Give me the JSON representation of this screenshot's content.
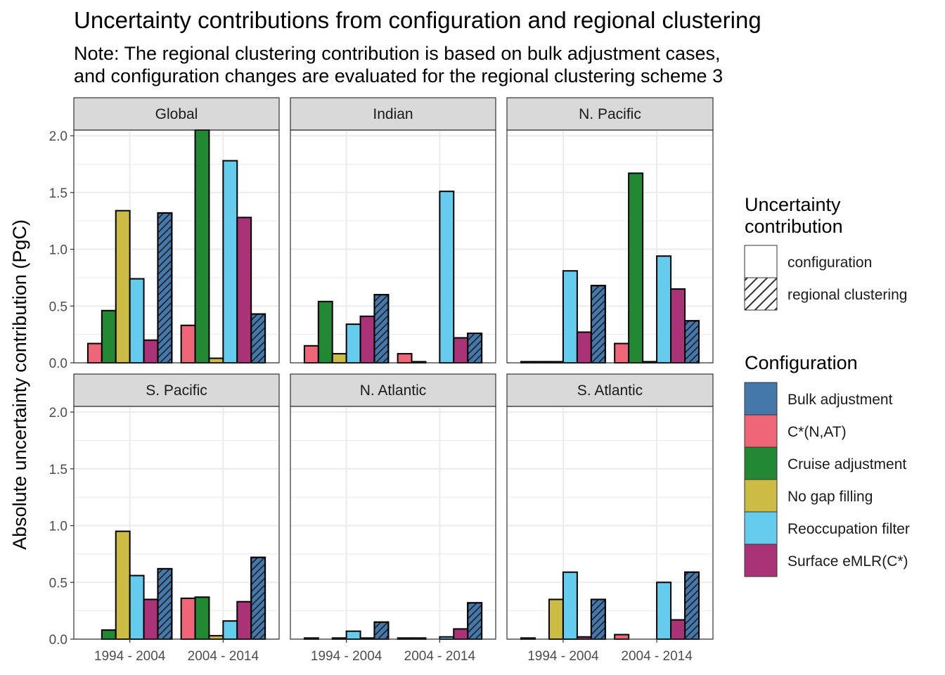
{
  "title": "Uncertainty contributions from configuration and regional clustering",
  "subtitle_lines": [
    "Note: The regional clustering contribution is based on bulk adjustment cases,",
    "and configuration changes are evaluated for the regional clustering scheme 3"
  ],
  "colors": {
    "Bulk adjustment": "#4477aa",
    "C*(N,AT)": "#ee6677",
    "Cruise adjustment": "#228833",
    "No gap filling": "#ccbb44",
    "Reoccupation filter": "#66ccee",
    "Surface eMLR(C*)": "#aa3377"
  },
  "chart_data": {
    "type": "bar",
    "facet_layout": "2 rows x 3 columns",
    "ylabel": "Absolute uncertainty contribution (PgC)",
    "xlabel": "",
    "ylim": [
      0,
      2.05
    ],
    "yticks": [
      0.0,
      0.5,
      1.0,
      1.5,
      2.0
    ],
    "ytick_labels": [
      "0.0",
      "0.5",
      "1.0",
      "1.5",
      "2.0"
    ],
    "grid": true,
    "categories": [
      "1994 - 2004",
      "2004 - 2014"
    ],
    "series_order": [
      "C*(N,AT)",
      "Cruise adjustment",
      "No gap filling",
      "Reoccupation filter",
      "Surface eMLR(C*)",
      "Bulk adjustment"
    ],
    "hatched_series": [
      "Bulk adjustment"
    ],
    "legend": {
      "placement": "right",
      "uncertainty_title_lines": [
        "Uncertainty",
        "contribution"
      ],
      "uncertainty_items": [
        {
          "label": "configuration",
          "hatched": false
        },
        {
          "label": "regional clustering",
          "hatched": true
        }
      ],
      "config_title": "Configuration",
      "config_items": [
        "Bulk adjustment",
        "C*(N,AT)",
        "Cruise adjustment",
        "No gap filling",
        "Reoccupation filter",
        "Surface eMLR(C*)"
      ]
    },
    "panels": [
      {
        "name": "Global",
        "series": [
          {
            "name": "C*(N,AT)",
            "values": [
              0.17,
              0.33
            ]
          },
          {
            "name": "Cruise adjustment",
            "values": [
              0.46,
              2.05
            ]
          },
          {
            "name": "No gap filling",
            "values": [
              1.34,
              0.04
            ]
          },
          {
            "name": "Reoccupation filter",
            "values": [
              0.74,
              1.78
            ]
          },
          {
            "name": "Surface eMLR(C*)",
            "values": [
              0.2,
              1.28
            ]
          },
          {
            "name": "Bulk adjustment",
            "values": [
              1.32,
              0.43
            ]
          }
        ]
      },
      {
        "name": "Indian",
        "series": [
          {
            "name": "C*(N,AT)",
            "values": [
              0.15,
              0.08
            ]
          },
          {
            "name": "Cruise adjustment",
            "values": [
              0.54,
              0.01
            ]
          },
          {
            "name": "No gap filling",
            "values": [
              0.08,
              0.0
            ]
          },
          {
            "name": "Reoccupation filter",
            "values": [
              0.34,
              1.51
            ]
          },
          {
            "name": "Surface eMLR(C*)",
            "values": [
              0.41,
              0.22
            ]
          },
          {
            "name": "Bulk adjustment",
            "values": [
              0.6,
              0.26
            ]
          }
        ]
      },
      {
        "name": "N. Pacific",
        "series": [
          {
            "name": "C*(N,AT)",
            "values": [
              0.01,
              0.17
            ]
          },
          {
            "name": "Cruise adjustment",
            "values": [
              0.01,
              1.67
            ]
          },
          {
            "name": "No gap filling",
            "values": [
              0.01,
              0.01
            ]
          },
          {
            "name": "Reoccupation filter",
            "values": [
              0.81,
              0.94
            ]
          },
          {
            "name": "Surface eMLR(C*)",
            "values": [
              0.27,
              0.65
            ]
          },
          {
            "name": "Bulk adjustment",
            "values": [
              0.68,
              0.37
            ]
          }
        ]
      },
      {
        "name": "S. Pacific",
        "series": [
          {
            "name": "C*(N,AT)",
            "values": [
              0.0,
              0.36
            ]
          },
          {
            "name": "Cruise adjustment",
            "values": [
              0.08,
              0.37
            ]
          },
          {
            "name": "No gap filling",
            "values": [
              0.95,
              0.03
            ]
          },
          {
            "name": "Reoccupation filter",
            "values": [
              0.56,
              0.16
            ]
          },
          {
            "name": "Surface eMLR(C*)",
            "values": [
              0.35,
              0.33
            ]
          },
          {
            "name": "Bulk adjustment",
            "values": [
              0.62,
              0.72
            ]
          }
        ]
      },
      {
        "name": "N. Atlantic",
        "series": [
          {
            "name": "C*(N,AT)",
            "values": [
              0.01,
              0.01
            ]
          },
          {
            "name": "Cruise adjustment",
            "values": [
              0.0,
              0.01
            ]
          },
          {
            "name": "No gap filling",
            "values": [
              0.01,
              0.0
            ]
          },
          {
            "name": "Reoccupation filter",
            "values": [
              0.07,
              0.02
            ]
          },
          {
            "name": "Surface eMLR(C*)",
            "values": [
              0.01,
              0.09
            ]
          },
          {
            "name": "Bulk adjustment",
            "values": [
              0.15,
              0.32
            ]
          }
        ]
      },
      {
        "name": "S. Atlantic",
        "series": [
          {
            "name": "C*(N,AT)",
            "values": [
              0.01,
              0.04
            ]
          },
          {
            "name": "Cruise adjustment",
            "values": [
              0.0,
              0.0
            ]
          },
          {
            "name": "No gap filling",
            "values": [
              0.35,
              0.0
            ]
          },
          {
            "name": "Reoccupation filter",
            "values": [
              0.59,
              0.5
            ]
          },
          {
            "name": "Surface eMLR(C*)",
            "values": [
              0.02,
              0.17
            ]
          },
          {
            "name": "Bulk adjustment",
            "values": [
              0.35,
              0.59
            ]
          }
        ]
      }
    ]
  }
}
